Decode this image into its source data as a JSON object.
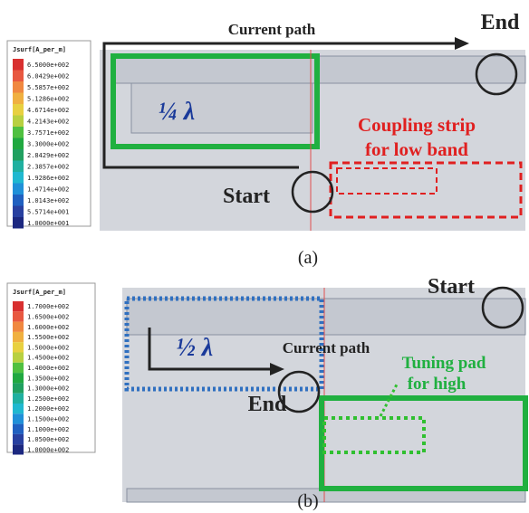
{
  "panels": [
    {
      "legend": {
        "title": "Jsurf[A_per_m]",
        "labels": [
          "6.5000e+002",
          "6.0429e+002",
          "5.5857e+002",
          "5.1286e+002",
          "4.6714e+002",
          "4.2143e+002",
          "3.7571e+002",
          "3.3000e+002",
          "2.8429e+002",
          "2.3857e+002",
          "1.9286e+002",
          "1.4714e+002",
          "1.0143e+002",
          "5.5714e+001",
          "1.0000e+001"
        ]
      },
      "annotations": {
        "current_path": "Current path",
        "end": "End",
        "start": "Start",
        "wavelength": "¼ λ",
        "strip_line1": "Coupling strip",
        "strip_line2": "for low band"
      },
      "caption": "(a)"
    },
    {
      "legend": {
        "title": "Jsurf[A_per_m]",
        "labels": [
          "1.7000e+002",
          "1.6500e+002",
          "1.6000e+002",
          "1.5500e+002",
          "1.5000e+002",
          "1.4500e+002",
          "1.4000e+002",
          "1.3500e+002",
          "1.3000e+002",
          "1.2500e+002",
          "1.2000e+002",
          "1.1500e+002",
          "1.1000e+002",
          "1.0500e+002",
          "1.0000e+002"
        ]
      },
      "annotations": {
        "start": "Start",
        "wavelength": "½ λ",
        "current_path": "Current path",
        "end": "End",
        "pad_line1": "Tuning pad",
        "pad_line2": "for high"
      },
      "caption": "(b)"
    }
  ]
}
